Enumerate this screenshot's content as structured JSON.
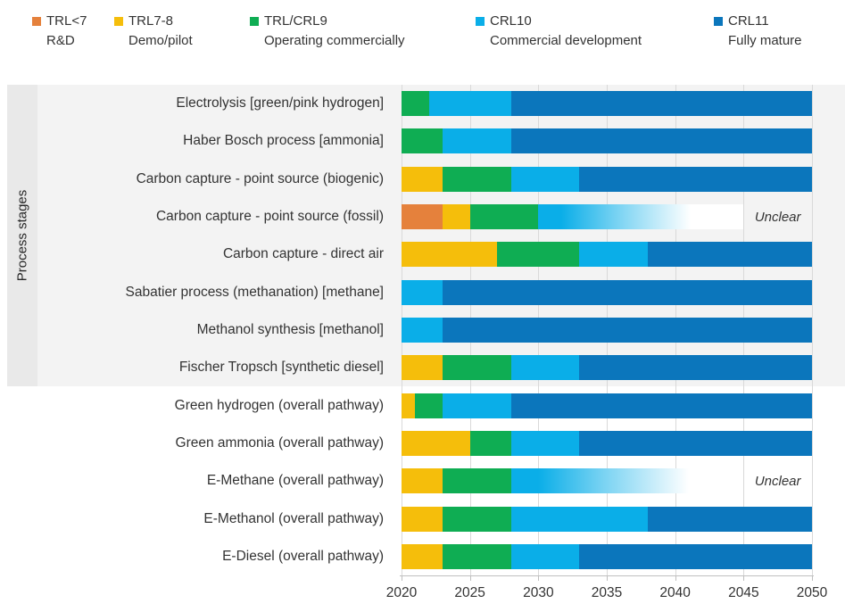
{
  "legend": {
    "items": [
      {
        "code": "TRL<7",
        "desc": "R&D",
        "color": "#E5813C"
      },
      {
        "code": "TRL7-8",
        "desc": "Demo/pilot",
        "color": "#F5BE0B"
      },
      {
        "code": "TRL/CRL9",
        "desc": "Operating commercially",
        "color": "#0FAD53"
      },
      {
        "code": "CRL10",
        "desc": "Commercial development",
        "color": "#0AAEE8"
      },
      {
        "code": "CRL11",
        "desc": "Fully mature",
        "color": "#0B76BC"
      }
    ]
  },
  "y_axis_title": "Process stages",
  "chart_data": {
    "type": "bar",
    "subtype": "horizontal-stacked-timeline",
    "xlim": [
      2020,
      2050
    ],
    "x_ticks": [
      2020,
      2025,
      2030,
      2035,
      2040,
      2045,
      2050
    ],
    "grid": true,
    "legend_position": "top",
    "category_colors": {
      "TRL<7": "#E5813C",
      "TRL7-8": "#F5BE0B",
      "TRL/CRL9": "#0FAD53",
      "CRL10": "#0AAEE8",
      "CRL11": "#0B76BC"
    },
    "annotation_label": "Unclear",
    "rows": [
      {
        "label": "Electrolysis [green/pink hydrogen]",
        "group": "process-stage",
        "segments": [
          {
            "cat": "TRL/CRL9",
            "start": 2020,
            "end": 2022
          },
          {
            "cat": "CRL10",
            "start": 2022,
            "end": 2028
          },
          {
            "cat": "CRL11",
            "start": 2028,
            "end": 2050
          }
        ]
      },
      {
        "label": "Haber Bosch process [ammonia]",
        "group": "process-stage",
        "segments": [
          {
            "cat": "TRL/CRL9",
            "start": 2020,
            "end": 2023
          },
          {
            "cat": "CRL10",
            "start": 2023,
            "end": 2028
          },
          {
            "cat": "CRL11",
            "start": 2028,
            "end": 2050
          }
        ]
      },
      {
        "label": "Carbon capture - point source (biogenic)",
        "group": "process-stage",
        "segments": [
          {
            "cat": "TRL7-8",
            "start": 2020,
            "end": 2023
          },
          {
            "cat": "TRL/CRL9",
            "start": 2023,
            "end": 2028
          },
          {
            "cat": "CRL10",
            "start": 2028,
            "end": 2033
          },
          {
            "cat": "CRL11",
            "start": 2033,
            "end": 2050
          }
        ]
      },
      {
        "label": "Carbon capture - point source (fossil)",
        "group": "process-stage",
        "annotation": "Unclear",
        "white_until": 2045,
        "segments": [
          {
            "cat": "TRL<7",
            "start": 2020,
            "end": 2023
          },
          {
            "cat": "TRL7-8",
            "start": 2023,
            "end": 2025
          },
          {
            "cat": "TRL/CRL9",
            "start": 2025,
            "end": 2030
          },
          {
            "cat": "CRL10",
            "start": 2030,
            "end": 2042,
            "fade": true
          }
        ]
      },
      {
        "label": "Carbon capture - direct air",
        "group": "process-stage",
        "segments": [
          {
            "cat": "TRL7-8",
            "start": 2020,
            "end": 2027
          },
          {
            "cat": "TRL/CRL9",
            "start": 2027,
            "end": 2033
          },
          {
            "cat": "CRL10",
            "start": 2033,
            "end": 2038
          },
          {
            "cat": "CRL11",
            "start": 2038,
            "end": 2050
          }
        ]
      },
      {
        "label": "Sabatier process (methanation) [methane]",
        "group": "process-stage",
        "segments": [
          {
            "cat": "CRL10",
            "start": 2020,
            "end": 2023
          },
          {
            "cat": "CRL11",
            "start": 2023,
            "end": 2050
          }
        ]
      },
      {
        "label": "Methanol synthesis [methanol]",
        "group": "process-stage",
        "segments": [
          {
            "cat": "CRL10",
            "start": 2020,
            "end": 2023
          },
          {
            "cat": "CRL11",
            "start": 2023,
            "end": 2050
          }
        ]
      },
      {
        "label": "Fischer Tropsch [synthetic diesel]",
        "group": "process-stage",
        "segments": [
          {
            "cat": "TRL7-8",
            "start": 2020,
            "end": 2023
          },
          {
            "cat": "TRL/CRL9",
            "start": 2023,
            "end": 2028
          },
          {
            "cat": "CRL10",
            "start": 2028,
            "end": 2033
          },
          {
            "cat": "CRL11",
            "start": 2033,
            "end": 2050
          }
        ]
      },
      {
        "label": "Green hydrogen (overall pathway)",
        "group": "overall-pathway",
        "segments": [
          {
            "cat": "TRL7-8",
            "start": 2020,
            "end": 2021
          },
          {
            "cat": "TRL/CRL9",
            "start": 2021,
            "end": 2023
          },
          {
            "cat": "CRL10",
            "start": 2023,
            "end": 2028
          },
          {
            "cat": "CRL11",
            "start": 2028,
            "end": 2050
          }
        ]
      },
      {
        "label": "Green ammonia (overall pathway)",
        "group": "overall-pathway",
        "segments": [
          {
            "cat": "TRL7-8",
            "start": 2020,
            "end": 2025
          },
          {
            "cat": "TRL/CRL9",
            "start": 2025,
            "end": 2028
          },
          {
            "cat": "CRL10",
            "start": 2028,
            "end": 2033
          },
          {
            "cat": "CRL11",
            "start": 2033,
            "end": 2050
          }
        ]
      },
      {
        "label": "E-Methane (overall pathway)",
        "group": "overall-pathway",
        "annotation": "Unclear",
        "white_until": 2045,
        "segments": [
          {
            "cat": "TRL7-8",
            "start": 2020,
            "end": 2023
          },
          {
            "cat": "TRL/CRL9",
            "start": 2023,
            "end": 2028
          },
          {
            "cat": "CRL10",
            "start": 2028,
            "end": 2042,
            "fade": true
          }
        ]
      },
      {
        "label": "E-Methanol (overall pathway)",
        "group": "overall-pathway",
        "segments": [
          {
            "cat": "TRL7-8",
            "start": 2020,
            "end": 2023
          },
          {
            "cat": "TRL/CRL9",
            "start": 2023,
            "end": 2028
          },
          {
            "cat": "CRL10",
            "start": 2028,
            "end": 2038
          },
          {
            "cat": "CRL11",
            "start": 2038,
            "end": 2050
          }
        ]
      },
      {
        "label": "E-Diesel (overall pathway)",
        "group": "overall-pathway",
        "segments": [
          {
            "cat": "TRL7-8",
            "start": 2020,
            "end": 2023
          },
          {
            "cat": "TRL/CRL9",
            "start": 2023,
            "end": 2028
          },
          {
            "cat": "CRL10",
            "start": 2028,
            "end": 2033
          },
          {
            "cat": "CRL11",
            "start": 2033,
            "end": 2050
          }
        ]
      }
    ]
  }
}
